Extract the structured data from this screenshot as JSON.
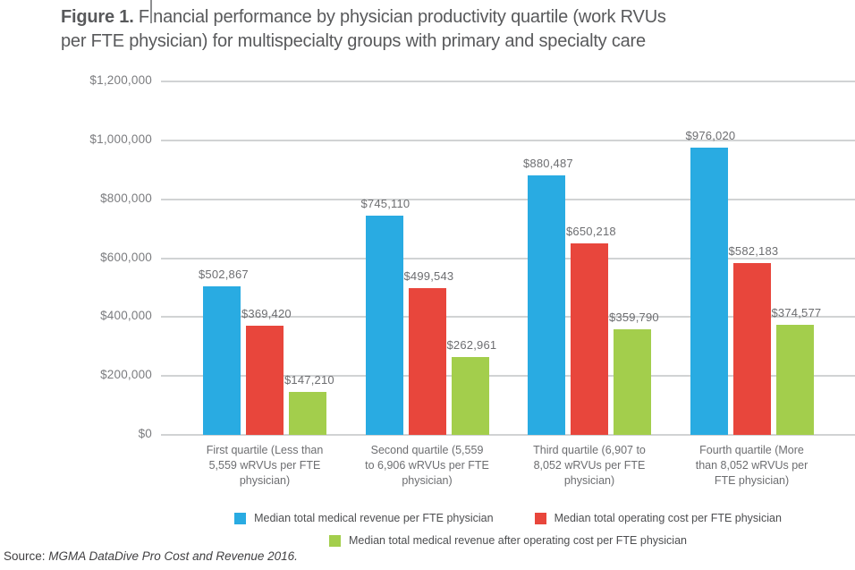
{
  "title": {
    "prefix": "Figure 1.",
    "line1_rest": " Financial performance by physician productivity quartile (work RVUs",
    "line2": "per FTE physician) for multispecialty groups with primary and specialty care"
  },
  "source": {
    "prefix": "Source: ",
    "citation": "MGMA DataDive Pro Cost and Revenue 2016."
  },
  "chart_data": {
    "type": "bar",
    "title": "Figure 1. Financial performance by physician productivity quartile (work RVUs per FTE physician) for multispecialty groups with primary and specialty care",
    "categories": [
      [
        "First quartile (Less than",
        "5,559 wRVUs per FTE",
        "physician)"
      ],
      [
        "Second quartile (5,559",
        "to 6,906 wRVUs per FTE",
        "physician)"
      ],
      [
        "Third quartile (6,907 to",
        "8,052 wRVUs per FTE",
        "physician)"
      ],
      [
        "Fourth quartile (More",
        "than 8,052 wRVUs per",
        "FTE physician)"
      ]
    ],
    "series": [
      {
        "name": "Median total medical revenue per FTE physician",
        "color": "#29ABE2",
        "values": [
          502867,
          745110,
          880487,
          976020
        ],
        "labels": [
          "$502,867",
          "$745,110",
          "$880,487",
          "$976,020"
        ]
      },
      {
        "name": "Median total operating cost per FTE physician",
        "color": "#E8463C",
        "values": [
          369420,
          499543,
          650218,
          582183
        ],
        "labels": [
          "$369,420",
          "$499,543",
          "$650,218",
          "$582,183"
        ]
      },
      {
        "name": "Median total medical revenue after operating cost per FTE physician",
        "color": "#A3CE4C",
        "values": [
          147210,
          262961,
          359790,
          374577
        ],
        "labels": [
          "$147,210",
          "$262,961",
          "$359,790",
          "$374,577"
        ]
      }
    ],
    "y_axis": {
      "min": 0,
      "max": 1200000,
      "tick_step": 200000,
      "tick_labels": [
        "$0",
        "$200,000",
        "$400,000",
        "$600,000",
        "$800,000",
        "$1,000,000",
        "$1,200,000"
      ]
    },
    "grid": true,
    "legend_position": "bottom",
    "legend_rows": [
      [
        0,
        1
      ],
      [
        2
      ]
    ]
  }
}
